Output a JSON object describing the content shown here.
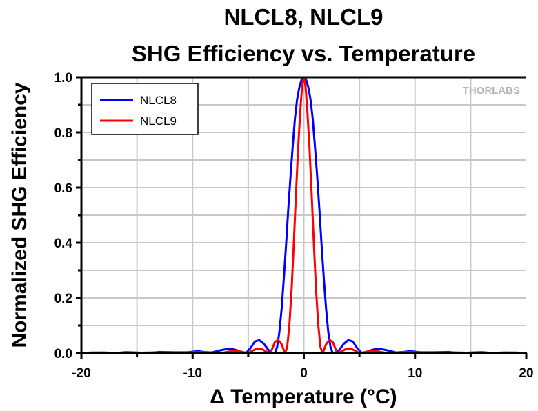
{
  "chart_data": {
    "type": "line",
    "title": "NLCL8, NLCL9",
    "subtitle": "SHG Efficiency vs. Temperature",
    "xlabel": "Δ Temperature (°C)",
    "ylabel": "Normalized SHG Efficiency",
    "xlim": [
      -20,
      20
    ],
    "ylim": [
      0,
      1.0
    ],
    "xticks": [
      -20,
      -10,
      0,
      10,
      20
    ],
    "xtick_labels": [
      "-20",
      "-10",
      "0",
      "10",
      "20"
    ],
    "yticks": [
      0.0,
      0.2,
      0.4,
      0.6,
      0.8,
      1.0
    ],
    "ytick_labels": [
      "0.0",
      "0.2",
      "0.4",
      "0.6",
      "0.8",
      "1.0"
    ],
    "grid": true,
    "legend_position": "top-left",
    "watermark": "THORLABS",
    "series": [
      {
        "name": "NLCL8",
        "color": "#0000ff",
        "x": [
          -20,
          -19,
          -18,
          -17,
          -16,
          -15,
          -14,
          -13,
          -12,
          -11,
          -10,
          -9.5,
          -9,
          -8.5,
          -8,
          -7.5,
          -7,
          -6.6,
          -6,
          -5.5,
          -5.2,
          -4.8,
          -4.4,
          -4,
          -3.6,
          -3.2,
          -2.9,
          -2.6,
          -2.4,
          -2.2,
          -2,
          -1.8,
          -1.6,
          -1.4,
          -1.2,
          -1,
          -0.8,
          -0.6,
          -0.4,
          -0.2,
          0,
          0.2,
          0.4,
          0.6,
          0.8,
          1,
          1.2,
          1.4,
          1.6,
          1.8,
          2,
          2.2,
          2.4,
          2.6,
          2.9,
          3.2,
          3.6,
          4,
          4.4,
          4.8,
          5.2,
          5.5,
          6,
          6.6,
          7,
          7.5,
          8,
          8.5,
          9,
          9.5,
          10,
          11,
          12,
          13,
          14,
          15,
          16,
          17,
          18,
          19,
          20
        ],
        "y": [
          0,
          0.002,
          0.002,
          0,
          0.003,
          0.002,
          0,
          0.004,
          0.003,
          0,
          0.005,
          0.007,
          0.004,
          0,
          0.005,
          0.01,
          0.014,
          0.016,
          0.01,
          0.002,
          0,
          0.018,
          0.042,
          0.047,
          0.034,
          0.012,
          0.002,
          0,
          0.022,
          0.075,
          0.16,
          0.27,
          0.39,
          0.52,
          0.64,
          0.75,
          0.85,
          0.92,
          0.965,
          0.992,
          1,
          0.992,
          0.965,
          0.92,
          0.85,
          0.75,
          0.64,
          0.52,
          0.39,
          0.27,
          0.16,
          0.075,
          0.022,
          0,
          0.002,
          0.012,
          0.034,
          0.047,
          0.042,
          0.018,
          0,
          0.002,
          0.01,
          0.016,
          0.014,
          0.01,
          0.005,
          0,
          0.004,
          0.007,
          0.005,
          0,
          0.003,
          0.004,
          0,
          0.002,
          0.003,
          0,
          0.002,
          0.002,
          0
        ]
      },
      {
        "name": "NLCL9",
        "color": "#ff0000",
        "x": [
          -20,
          -18,
          -16,
          -14,
          -12,
          -10,
          -9,
          -8,
          -7.4,
          -6.8,
          -6.4,
          -6,
          -5.4,
          -5,
          -4.6,
          -4.2,
          -3.8,
          -3.4,
          -3,
          -2.6,
          -2.3,
          -2,
          -1.7,
          -1.5,
          -1.3,
          -1.1,
          -0.9,
          -0.7,
          -0.5,
          -0.3,
          -0.15,
          0,
          0.15,
          0.3,
          0.5,
          0.7,
          0.9,
          1.1,
          1.3,
          1.5,
          1.7,
          2,
          2.3,
          2.6,
          3,
          3.4,
          3.8,
          4.2,
          4.6,
          5,
          5.4,
          6,
          6.4,
          6.8,
          7.4,
          8,
          9,
          10,
          12,
          14,
          16,
          18,
          20
        ],
        "y": [
          0,
          0.002,
          0,
          0.002,
          0.003,
          0.003,
          0.004,
          0.002,
          0,
          0.005,
          0.008,
          0.008,
          0.003,
          0,
          0.009,
          0.016,
          0.015,
          0.006,
          0,
          0.04,
          0.048,
          0.032,
          0,
          0.02,
          0.1,
          0.23,
          0.4,
          0.58,
          0.75,
          0.89,
          0.97,
          1,
          0.97,
          0.89,
          0.75,
          0.58,
          0.4,
          0.23,
          0.1,
          0.02,
          0,
          0.032,
          0.048,
          0.04,
          0,
          0.006,
          0.015,
          0.016,
          0.009,
          0,
          0.003,
          0.008,
          0.008,
          0.005,
          0,
          0.002,
          0.004,
          0.003,
          0.003,
          0.002,
          0,
          0.002,
          0
        ]
      }
    ]
  }
}
